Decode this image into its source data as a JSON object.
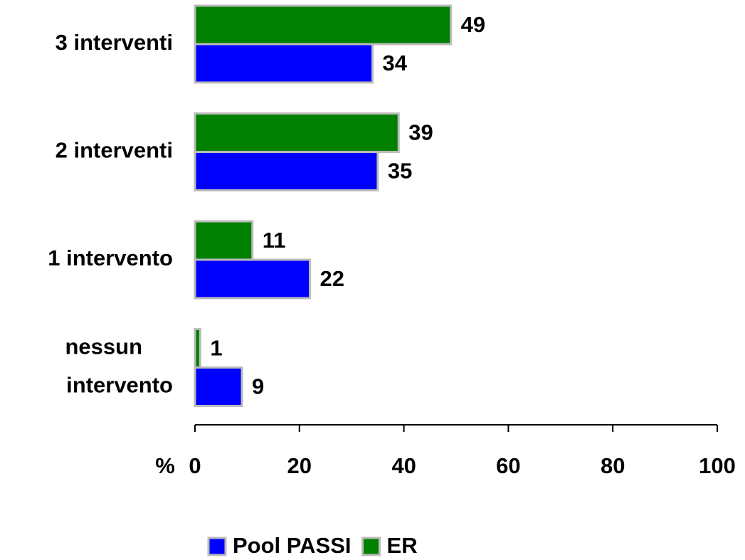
{
  "chart_data": {
    "type": "hbar",
    "categories": [
      "3 interventi",
      "2 interventi",
      "1 intervento",
      "nessun intervento"
    ],
    "series": [
      {
        "name": "Pool PASSI",
        "color": "#0000ff",
        "values": [
          34,
          35,
          22,
          9
        ]
      },
      {
        "name": "ER",
        "color": "#008000",
        "values": [
          49,
          39,
          11,
          1
        ]
      }
    ],
    "xlabel": "%",
    "xlim": [
      0,
      100
    ],
    "xticks": [
      0,
      20,
      40,
      60,
      80,
      100
    ],
    "legend": "bottom"
  }
}
